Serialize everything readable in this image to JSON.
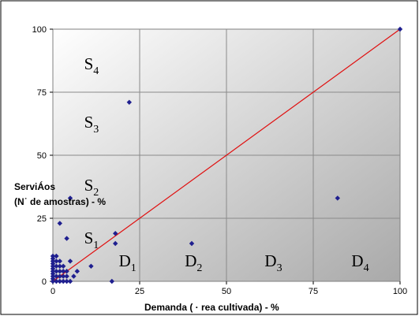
{
  "chart_data": {
    "type": "scatter",
    "title": "",
    "xlabel": "Demanda ( · rea cultivada) - %",
    "ylabel_line1": "ServiÁos",
    "ylabel_line2": "(N˙ de amostras) - %",
    "xlim": [
      0,
      100
    ],
    "ylim": [
      0,
      100
    ],
    "x_ticks": [
      0,
      25,
      50,
      75,
      100
    ],
    "y_ticks": [
      0,
      25,
      50,
      75,
      100
    ],
    "grid": true,
    "legend": "none",
    "colors": {
      "points": "#1f1f8f",
      "trend_line": "#e01010",
      "grid": "#8a8a8a",
      "plot_bg_light": "#ffffff",
      "plot_bg_dark": "#a9a9a9"
    },
    "points": [
      [
        100,
        100
      ],
      [
        22,
        71
      ],
      [
        82,
        33
      ],
      [
        5,
        33
      ],
      [
        2,
        23
      ],
      [
        4,
        17
      ],
      [
        18,
        19
      ],
      [
        18,
        15
      ],
      [
        40,
        15
      ],
      [
        11,
        6
      ],
      [
        17,
        0
      ],
      [
        7,
        4
      ],
      [
        5,
        8
      ],
      [
        0,
        10
      ],
      [
        0,
        9
      ],
      [
        0,
        8
      ],
      [
        0,
        7
      ],
      [
        0,
        6
      ],
      [
        0,
        5
      ],
      [
        0,
        4
      ],
      [
        0,
        3
      ],
      [
        0,
        2
      ],
      [
        0,
        1
      ],
      [
        0,
        0
      ],
      [
        1,
        10
      ],
      [
        1,
        8
      ],
      [
        1,
        6
      ],
      [
        1,
        4
      ],
      [
        1,
        2
      ],
      [
        1,
        0
      ],
      [
        2,
        8
      ],
      [
        2,
        6
      ],
      [
        2,
        4
      ],
      [
        2,
        2
      ],
      [
        2,
        0
      ],
      [
        3,
        6
      ],
      [
        3,
        4
      ],
      [
        3,
        2
      ],
      [
        3,
        0
      ],
      [
        4,
        4
      ],
      [
        4,
        2
      ],
      [
        4,
        0
      ],
      [
        5,
        0
      ],
      [
        6,
        2
      ]
    ],
    "trend_line": [
      [
        0,
        0
      ],
      [
        100,
        100
      ]
    ],
    "region_labels": {
      "S4": {
        "main": "S",
        "sub": "4",
        "x": 9,
        "y": 84
      },
      "S3": {
        "main": "S",
        "sub": "3",
        "x": 9,
        "y": 61
      },
      "S2": {
        "main": "S",
        "sub": "2",
        "x": 9,
        "y": 36
      },
      "S1": {
        "main": "S",
        "sub": "1",
        "x": 9,
        "y": 15
      },
      "D1": {
        "main": "D",
        "sub": "1",
        "x": 19,
        "y": 6
      },
      "D2": {
        "main": "D",
        "sub": "2",
        "x": 38,
        "y": 6
      },
      "D3": {
        "main": "D",
        "sub": "3",
        "x": 61,
        "y": 6
      },
      "D4": {
        "main": "D",
        "sub": "4",
        "x": 86,
        "y": 6
      }
    }
  }
}
